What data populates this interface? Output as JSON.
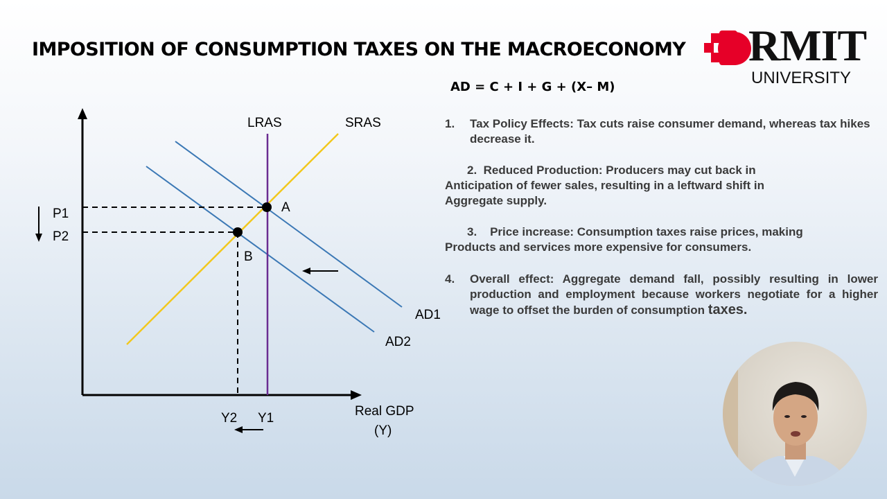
{
  "slide": {
    "title": "IMPOSITION OF CONSUMPTION TAXES ON THE MACROECONOMY",
    "logo": {
      "name": "RMIT",
      "sub": "UNIVERSITY",
      "color": "#e60028"
    },
    "formula": "AD = C + I + G + (X– M)",
    "points": [
      {
        "num": "1.",
        "text": "Tax Policy Effects: Tax cuts raise consumer demand, whereas tax hikes decrease it."
      },
      {
        "num": "2.",
        "lines": [
          "Reduced Production: Producers may cut back in",
          "Anticipation of fewer sales, resulting in a leftward shift in",
          "Aggregate supply."
        ]
      },
      {
        "num": "3.",
        "lines": [
          "Price increase:  Consumption taxes raise prices, making",
          "Products and services more expensive for consumers."
        ]
      },
      {
        "num": "4.",
        "text": "Overall effect:  Aggregate demand fall, possibly resulting in lower production and employment because workers negotiate for a higher wage to offset the burden of consumption",
        "tail": "taxes."
      }
    ]
  },
  "diagram": {
    "labels": {
      "lras": "LRAS",
      "sras": "SRAS",
      "ad1": "AD1",
      "ad2": "AD2",
      "p1": "P1",
      "p2": "P2",
      "y1": "Y1",
      "y2": "Y2",
      "point_a": "A",
      "point_b": "B",
      "x_axis_line1": "Real GDP",
      "x_axis_line2": "(Y)"
    },
    "colors": {
      "ad": "#3b78b5",
      "sras": "#f2c81d",
      "lras": "#6a2c91",
      "axis": "#000000"
    }
  },
  "webcam": {
    "description_icon": "presenter-video-icon"
  }
}
